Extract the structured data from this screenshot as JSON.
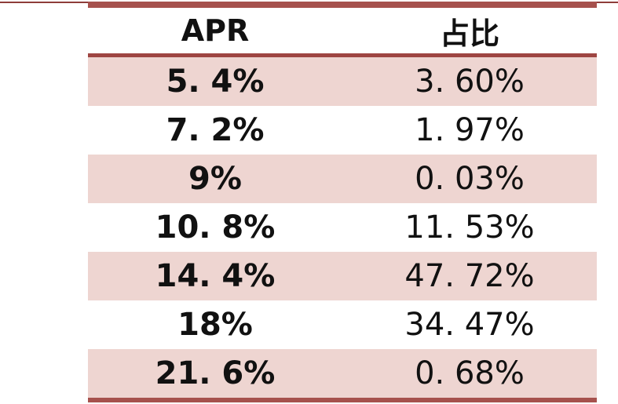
{
  "colors": {
    "top_rule": "#8e3d3a",
    "table_border": "#a6514d",
    "header_divider": "#9e4542",
    "row_pink": "#eed5d1",
    "row_white": "#ffffff",
    "text": "#111111"
  },
  "table": {
    "headers": [
      {
        "label": "APR"
      },
      {
        "label": "占比"
      }
    ],
    "rows": [
      {
        "apr": "5. 4%",
        "share": "3. 60%"
      },
      {
        "apr": "7. 2%",
        "share": "1. 97%"
      },
      {
        "apr": "9%",
        "share": "0. 03%"
      },
      {
        "apr": "10. 8%",
        "share": "11. 53%"
      },
      {
        "apr": "14. 4%",
        "share": "47. 72%"
      },
      {
        "apr": "18%",
        "share": "34. 47%"
      },
      {
        "apr": "21. 6%",
        "share": "0. 68%"
      }
    ]
  },
  "chart_data": {
    "type": "table",
    "title": "",
    "columns": [
      "APR",
      "占比"
    ],
    "rows": [
      [
        "5.4%",
        "3.60%"
      ],
      [
        "7.2%",
        "1.97%"
      ],
      [
        "9%",
        "0.03%"
      ],
      [
        "10.8%",
        "11.53%"
      ],
      [
        "14.4%",
        "47.72%"
      ],
      [
        "18%",
        "34.47%"
      ],
      [
        "21.6%",
        "0.68%"
      ]
    ],
    "apr_values_pct": [
      5.4,
      7.2,
      9,
      10.8,
      14.4,
      18,
      21.6
    ],
    "share_values_pct": [
      3.6,
      1.97,
      0.03,
      11.53,
      47.72,
      34.47,
      0.68
    ],
    "row_shading": "alternating pink starting at first data row"
  }
}
